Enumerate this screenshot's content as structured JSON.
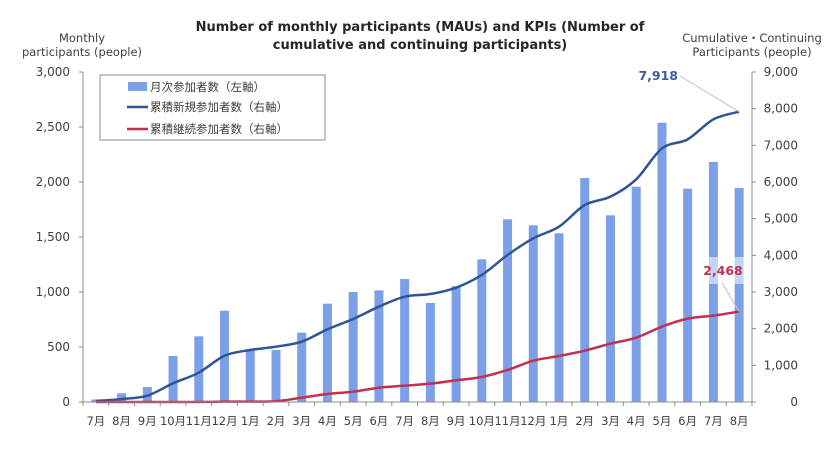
{
  "chart_data": {
    "type": "bar+line",
    "title_lines": [
      "Number of monthly participants (MAUs) and KPIs (Number of",
      "cumulative and continuing participants)"
    ],
    "left_axis": {
      "title_lines": [
        "Monthly",
        "participants (people)"
      ],
      "ylim": [
        0,
        3000
      ],
      "ticks": [
        0,
        500,
        1000,
        1500,
        2000,
        2500,
        3000
      ],
      "tick_labels": [
        "0",
        "500",
        "1,000",
        "1,500",
        "2,000",
        "2,500",
        "3,000"
      ]
    },
    "right_axis": {
      "title_lines": [
        "Cumulative・Continuing",
        "Participants (people)"
      ],
      "ylim": [
        0,
        9000
      ],
      "ticks": [
        0,
        1000,
        2000,
        3000,
        4000,
        5000,
        6000,
        7000,
        8000,
        9000
      ],
      "tick_labels": [
        "0",
        "1,000",
        "2,000",
        "3,000",
        "4,000",
        "5,000",
        "6,000",
        "7,000",
        "8,000",
        "9,000"
      ]
    },
    "categories": [
      "7月",
      "8月",
      "9月",
      "10月",
      "11月",
      "12月",
      "1月",
      "2月",
      "3月",
      "4月",
      "5月",
      "6月",
      "7月",
      "8月",
      "9月",
      "10月",
      "11月",
      "12月",
      "1月",
      "2月",
      "3月",
      "4月",
      "5月",
      "6月",
      "7月",
      "8月"
    ],
    "series": [
      {
        "name": "月次参加者数（左軸）",
        "type": "bar",
        "axis": "left",
        "color": "#7BA0E8",
        "values": [
          23,
          79,
          136,
          418,
          597,
          830,
          473,
          473,
          630,
          894,
          1000,
          1015,
          1118,
          900,
          1052,
          1297,
          1661,
          1606,
          1534,
          2036,
          1697,
          1957,
          2539,
          1939,
          2182,
          1945
        ]
      },
      {
        "name": "累積新規参加者数（右軸）",
        "type": "line",
        "axis": "right",
        "color": "#2F5597",
        "values": [
          27,
          80,
          172,
          510,
          800,
          1263,
          1418,
          1509,
          1645,
          1982,
          2264,
          2600,
          2873,
          2945,
          3118,
          3464,
          4009,
          4464,
          4782,
          5373,
          5600,
          6073,
          6918,
          7163,
          7709,
          7918
        ]
      },
      {
        "name": "累積継続参加者数（右軸）",
        "type": "line",
        "axis": "right",
        "color": "#C0304F",
        "values": [
          0,
          0,
          0,
          0,
          0,
          10,
          10,
          20,
          118,
          218,
          281,
          390,
          445,
          500,
          592,
          682,
          873,
          1127,
          1255,
          1400,
          1591,
          1755,
          2055,
          2273,
          2355,
          2468
        ]
      }
    ],
    "annotations": [
      {
        "text": "7,918",
        "series": 1,
        "index": 25,
        "color": "#3B5C9E"
      },
      {
        "text": "2,468",
        "series": 2,
        "index": 25,
        "color": "#C0304F"
      }
    ],
    "legend_position": "top-left",
    "grid": false
  }
}
